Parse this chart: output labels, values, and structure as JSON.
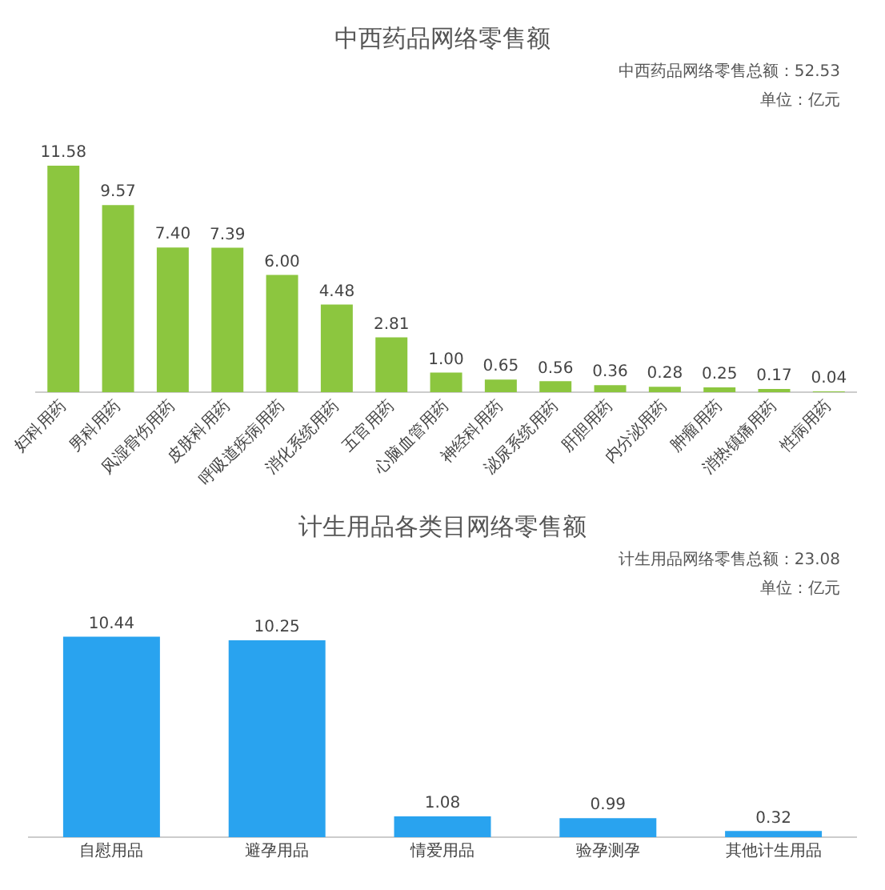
{
  "chart_data": [
    {
      "type": "bar",
      "title": "中西药品网络零售额",
      "annotations": [
        "中西药品网络零售总额：52.53",
        "单位：亿元"
      ],
      "categories": [
        "妇科用药",
        "男科用药",
        "风湿骨伤用药",
        "皮肤科用药",
        "呼吸道疾病用药",
        "消化系统用药",
        "五官用药",
        "心脑血管用药",
        "神经科用药",
        "泌尿系统用药",
        "肝胆用药",
        "内分泌用药",
        "肿瘤用药",
        "消热镇痛用药",
        "性病用药"
      ],
      "values": [
        11.58,
        9.57,
        7.4,
        7.39,
        6.0,
        4.48,
        2.81,
        1.0,
        0.65,
        0.56,
        0.36,
        0.28,
        0.25,
        0.17,
        0.04
      ],
      "color": "#8cc63f",
      "value_labels": [
        "11.58",
        "9.57",
        "7.40",
        "7.39",
        "6.00",
        "4.48",
        "2.81",
        "1.00",
        "0.65",
        "0.56",
        "0.36",
        "0.28",
        "0.25",
        "0.17",
        "0.04"
      ],
      "tick_labels": "x",
      "grid": false
    },
    {
      "type": "bar",
      "title": "计生用品各类目网络零售额",
      "annotations": [
        "计生用品网络零售总额：23.08",
        "单位：亿元"
      ],
      "categories": [
        "自慰用品",
        "避孕用品",
        "情爱用品",
        "验孕测孕",
        "其他计生用品"
      ],
      "values": [
        10.44,
        10.25,
        1.08,
        0.99,
        0.32
      ],
      "color": "#29a3ef",
      "data_labels": true,
      "tick_labels": "x",
      "grid": false
    }
  ]
}
